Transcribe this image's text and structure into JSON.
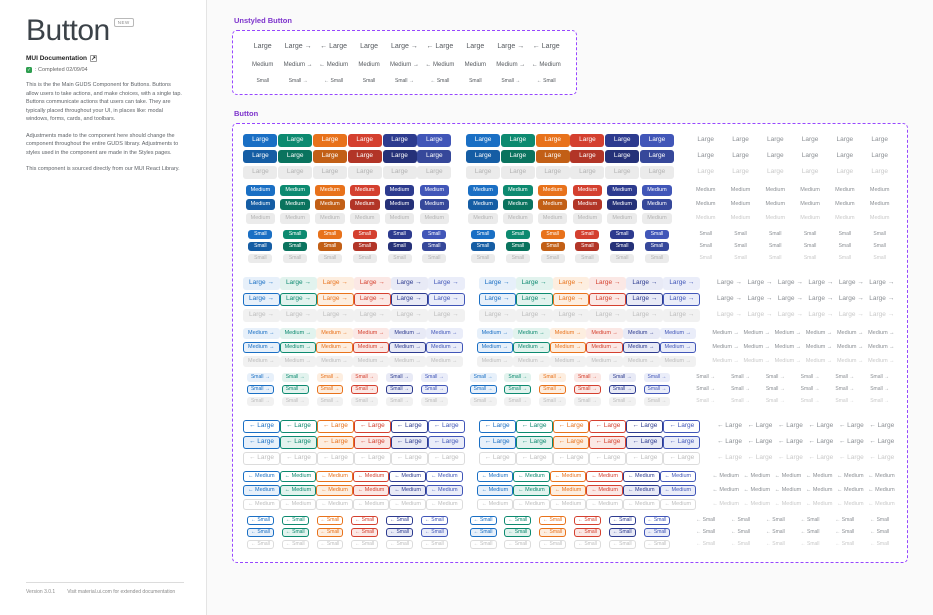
{
  "sidebar": {
    "title": "Button",
    "badge": "NEW",
    "doc_link": "MUI Documentation",
    "completed": ": Completed 02/09/04",
    "paragraphs": [
      "This is the the Main GUDS Component for Buttons. Buttons allow users to take actions, and make choices, with a single tap. Buttons communicate actions that users can take. They are typically placed throughout your UI, in places like: modal windows, forms, cards, and toolbars.",
      "Adjustments made to the component here should change the component throughout the entire GUDS library. Adjustments to styles used in the component are made in the Styles pages.",
      "This component is sourced directly from our MUI React Library."
    ],
    "version": "Version 3.0.1",
    "footer_note": "Visit material.ui.com for extended documentation"
  },
  "unstyled": {
    "title": "Unstyled Button",
    "sizes": [
      "Large",
      "Medium",
      "Small"
    ],
    "variants": [
      "plain",
      "trailing",
      "leading"
    ],
    "repeats": 3,
    "arrow_right": "→",
    "arrow_left": "←"
  },
  "buttons": {
    "title": "Button",
    "sizes": [
      "Large",
      "Medium",
      "Small"
    ],
    "states": [
      "default",
      "hover",
      "disabled"
    ],
    "arrow_right": "→",
    "arrow_left": "←",
    "palette": [
      {
        "name": "blue",
        "hex": "#1a6fc4",
        "tint": "#e7f0fa"
      },
      {
        "name": "teal",
        "hex": "#0d8a70",
        "tint": "#e2f3ee"
      },
      {
        "name": "orange",
        "hex": "#e8721b",
        "tint": "#fdeee0"
      },
      {
        "name": "red",
        "hex": "#d4402f",
        "tint": "#fbe8e5"
      },
      {
        "name": "navy",
        "hex": "#2d3b8f",
        "tint": "#e8eaf6"
      },
      {
        "name": "indigo",
        "hex": "#4156b8",
        "tint": "#eaedf9"
      }
    ],
    "blocks": [
      {
        "name": "contained",
        "arrow": "none",
        "groups": [
          "solid",
          "solid",
          "text"
        ]
      },
      {
        "name": "trailing-arrow",
        "arrow": "right",
        "groups": [
          "tonal",
          "tonal",
          "text"
        ]
      },
      {
        "name": "leading-arrow",
        "arrow": "left",
        "groups": [
          "outlined",
          "outlined",
          "text"
        ]
      }
    ]
  },
  "colors": {
    "frame_dashed": "#9747ff",
    "canvas_bg": "#fafafa",
    "success_green": "#2e9e4f"
  }
}
